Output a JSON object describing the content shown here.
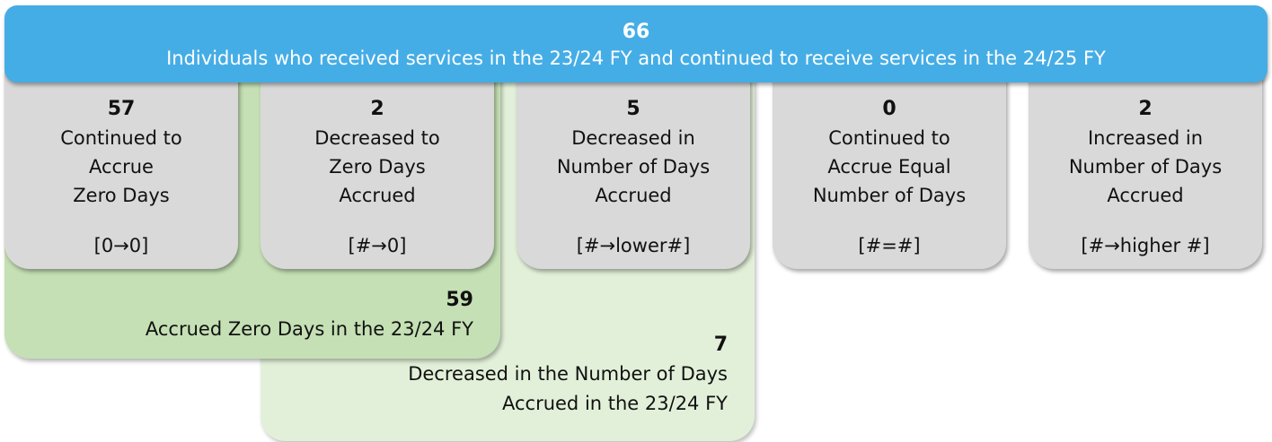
{
  "banner": {
    "count": 66,
    "label": "Individuals who received services in the 23/24 FY and continued to receive services in the 24/25 FY"
  },
  "boxes": [
    {
      "count": 57,
      "label": [
        "Continued to",
        "Accrue",
        "Zero Days"
      ],
      "code": "[0→0]"
    },
    {
      "count": 2,
      "label": [
        "Decreased to",
        "Zero Days",
        "Accrued"
      ],
      "code": "[#→0]"
    },
    {
      "count": 5,
      "label": [
        "Decreased in",
        "Number of Days",
        "Accrued"
      ],
      "code": "[#→lower#]"
    },
    {
      "count": 0,
      "label": [
        "Continued to",
        "Accrue Equal",
        "Number of Days"
      ],
      "code": "[#=#]"
    },
    {
      "count": 2,
      "label": [
        "Increased in",
        "Number of Days",
        "Accrued"
      ],
      "code": "[#→higher #]"
    }
  ],
  "groups": [
    {
      "count": 59,
      "label": [
        "Accrued Zero Days in the 23/24 FY"
      ]
    },
    {
      "count": 7,
      "label": [
        "Decreased in the Number of Days",
        "Accrued in the 23/24 FY"
      ]
    }
  ]
}
